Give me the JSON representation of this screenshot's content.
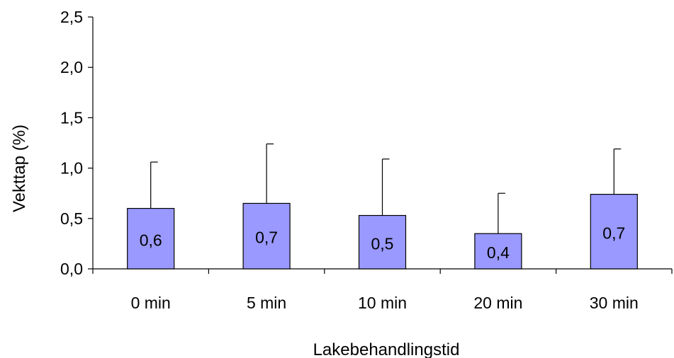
{
  "chart_data": {
    "type": "bar",
    "title": "",
    "xlabel": "Lakebehandlingstid",
    "ylabel": "Vekttap (%)",
    "ylim": [
      0,
      2.5
    ],
    "yticks": [
      0.0,
      0.5,
      1.0,
      1.5,
      2.0,
      2.5
    ],
    "ytick_labels": [
      "0,0",
      "0,5",
      "1,0",
      "1,5",
      "2,0",
      "2,5"
    ],
    "categories": [
      "0 min",
      "5 min",
      "10 min",
      "20 min",
      "30 min"
    ],
    "values": [
      0.6,
      0.65,
      0.53,
      0.35,
      0.74
    ],
    "value_labels": [
      "0,6",
      "0,7",
      "0,5",
      "0,4",
      "0,7"
    ],
    "error_bar_upper": [
      1.06,
      1.24,
      1.09,
      0.75,
      1.19
    ],
    "grid": false,
    "legend": "none",
    "colors": {
      "bar_fill": "#9999ff",
      "bar_stroke": "#000000",
      "axis": "#000000"
    }
  }
}
